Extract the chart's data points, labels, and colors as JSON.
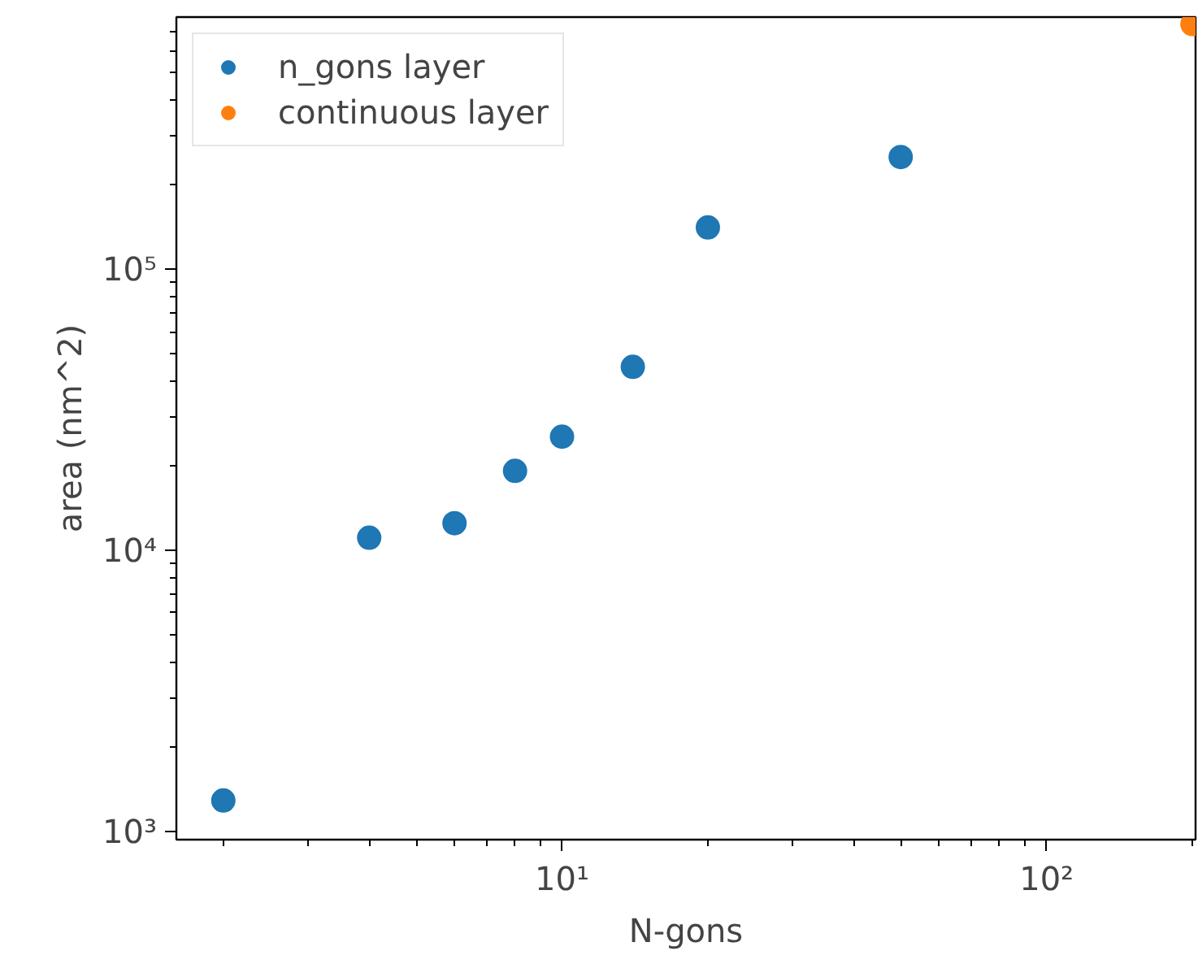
{
  "chart_data": {
    "type": "scatter",
    "xlabel": "N-gons",
    "ylabel": "area (nm^2)",
    "log": "xy",
    "xlim": [
      1.6,
      203
    ],
    "ylim": [
      936,
      790000
    ],
    "xticks": [
      {
        "value": 10,
        "label": "10¹"
      },
      {
        "value": 100,
        "label": "10²"
      }
    ],
    "yticks": [
      {
        "value": 1000,
        "label": "10³"
      },
      {
        "value": 10000,
        "label": "10⁴"
      },
      {
        "value": 100000,
        "label": "10⁵"
      }
    ],
    "grid": false,
    "legend": "top left",
    "marker": "circle",
    "series": [
      {
        "name": "n_gons layer",
        "color": "#1f77b4",
        "x": [
          2,
          4,
          6,
          8,
          10,
          14,
          20,
          50
        ],
        "values": [
          1290,
          11100,
          12500,
          19200,
          25400,
          45000,
          141000,
          251000
        ]
      },
      {
        "name": "continuous layer",
        "color": "#ff7f0e",
        "x": [
          200
        ],
        "values": [
          746000
        ]
      }
    ]
  }
}
